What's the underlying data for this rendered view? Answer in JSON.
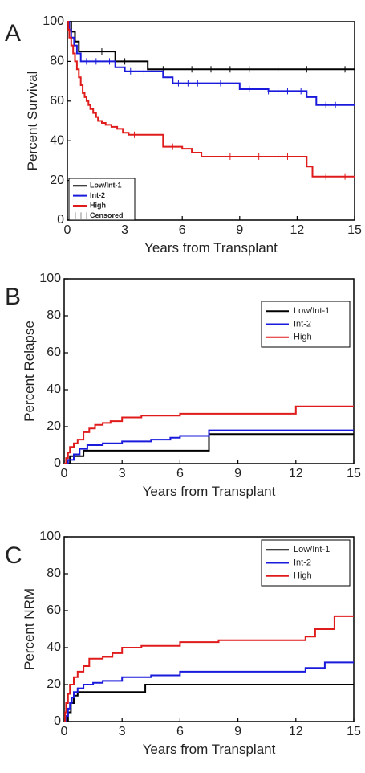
{
  "figure": {
    "colors": {
      "low_int1": "#000000",
      "int2": "#1a1adc",
      "high": "#e01b1b"
    }
  },
  "chart_data": [
    {
      "panel": "A",
      "type": "line",
      "step": true,
      "xlabel": "Years from Transplant",
      "ylabel": "Percent Survival",
      "xlim": [
        0,
        15
      ],
      "ylim": [
        0,
        100
      ],
      "xticks": [
        "0",
        "3",
        "6",
        "9",
        "12",
        "15"
      ],
      "yticks": [
        "0",
        "20",
        "40",
        "60",
        "80",
        "100"
      ],
      "legend": {
        "position": "bottom-left",
        "entries": [
          "Low/Int-1",
          "Int-2",
          "High",
          "Censored"
        ]
      },
      "series": [
        {
          "name": "Low/Int-1",
          "color": "#000000",
          "x": [
            0,
            0.2,
            0.4,
            0.6,
            0.8,
            2.5,
            3.0,
            4.2,
            15
          ],
          "y": [
            100,
            95,
            90,
            85,
            85,
            80,
            80,
            76,
            76
          ],
          "censored": [
            1.8,
            3.0,
            5.0,
            6.5,
            7.5,
            8.5,
            9.5,
            11.0,
            12.5,
            14.5
          ]
        },
        {
          "name": "Int-2",
          "color": "#1a1adc",
          "x": [
            0,
            0.1,
            0.2,
            0.35,
            0.5,
            0.7,
            2.0,
            2.5,
            3.0,
            4.5,
            5.0,
            5.5,
            7.5,
            9.0,
            10.5,
            12.0,
            12.5,
            13.0,
            15
          ],
          "y": [
            100,
            96,
            92,
            88,
            84,
            80,
            80,
            77,
            75,
            75,
            72,
            69,
            69,
            66,
            65,
            65,
            62,
            58,
            58
          ],
          "censored": [
            1.0,
            1.5,
            2.2,
            3.3,
            4.0,
            5.8,
            6.3,
            6.8,
            8.0,
            9.5,
            10.5,
            11.0,
            11.5,
            12.2,
            13.5,
            14.0
          ]
        },
        {
          "name": "High",
          "color": "#e01b1b",
          "x": [
            0,
            0.05,
            0.1,
            0.2,
            0.3,
            0.4,
            0.5,
            0.6,
            0.7,
            0.8,
            0.9,
            1.0,
            1.1,
            1.2,
            1.35,
            1.5,
            1.6,
            1.8,
            2.0,
            2.3,
            2.6,
            2.9,
            3.2,
            4.0,
            5.0,
            6.0,
            6.5,
            7.0,
            12.0,
            12.5,
            12.8,
            15
          ],
          "y": [
            100,
            96,
            92,
            88,
            84,
            80,
            76,
            72,
            68,
            64,
            62,
            60,
            58,
            56,
            54,
            52,
            50,
            49,
            48,
            47,
            46,
            44,
            43,
            43,
            37,
            36,
            34,
            32,
            32,
            27,
            22,
            22
          ],
          "censored": [
            3.5,
            5.5,
            8.5,
            10.0,
            11.0,
            11.5,
            13.5,
            14.5
          ]
        }
      ]
    },
    {
      "panel": "B",
      "type": "line",
      "step": true,
      "xlabel": "Years from Transplant",
      "ylabel": "Percent Relapse",
      "xlim": [
        0,
        15
      ],
      "ylim": [
        0,
        100
      ],
      "xticks": [
        "0",
        "3",
        "6",
        "9",
        "12",
        "15"
      ],
      "yticks": [
        "0",
        "20",
        "40",
        "60",
        "80",
        "100"
      ],
      "legend": {
        "position": "top-right",
        "entries": [
          "Low/Int-1",
          "Int-2",
          "High"
        ]
      },
      "series": [
        {
          "name": "Low/Int-1",
          "color": "#000000",
          "x": [
            0,
            0.3,
            1.0,
            7.5,
            15
          ],
          "y": [
            0,
            4,
            7,
            16,
            16
          ]
        },
        {
          "name": "Int-2",
          "color": "#1a1adc",
          "x": [
            0,
            0.2,
            0.5,
            0.8,
            1.2,
            2.0,
            3.0,
            4.5,
            5.5,
            6.0,
            7.5,
            15
          ],
          "y": [
            0,
            2,
            5,
            8,
            10,
            11,
            12,
            13,
            14,
            15,
            18,
            18
          ]
        },
        {
          "name": "High",
          "color": "#e01b1b",
          "x": [
            0,
            0.1,
            0.2,
            0.3,
            0.5,
            0.7,
            1.0,
            1.3,
            1.6,
            2.0,
            2.4,
            3.0,
            4.0,
            6.0,
            12.0,
            15
          ],
          "y": [
            0,
            3,
            6,
            9,
            11,
            13,
            17,
            19,
            21,
            22,
            23,
            25,
            26,
            27,
            31,
            31
          ]
        }
      ]
    },
    {
      "panel": "C",
      "type": "line",
      "step": true,
      "xlabel": "Years from Transplant",
      "ylabel": "Percent NRM",
      "xlim": [
        0,
        15
      ],
      "ylim": [
        0,
        100
      ],
      "xticks": [
        "0",
        "3",
        "6",
        "9",
        "12",
        "15"
      ],
      "yticks": [
        "0",
        "20",
        "40",
        "60",
        "80",
        "100"
      ],
      "legend": {
        "position": "top-right",
        "entries": [
          "Low/Int-1",
          "Int-2",
          "High"
        ]
      },
      "series": [
        {
          "name": "Low/Int-1",
          "color": "#000000",
          "x": [
            0,
            0.2,
            0.35,
            0.5,
            0.7,
            4.2,
            15
          ],
          "y": [
            0,
            5,
            10,
            14,
            16,
            20,
            20
          ]
        },
        {
          "name": "Int-2",
          "color": "#1a1adc",
          "x": [
            0,
            0.1,
            0.2,
            0.3,
            0.4,
            0.5,
            0.7,
            1.0,
            1.5,
            2.0,
            3.0,
            4.5,
            6.0,
            12.5,
            13.5,
            15
          ],
          "y": [
            0,
            3,
            7,
            10,
            13,
            16,
            18,
            20,
            21,
            22,
            24,
            25,
            27,
            29,
            32,
            32
          ]
        },
        {
          "name": "High",
          "color": "#e01b1b",
          "x": [
            0,
            0.05,
            0.1,
            0.2,
            0.3,
            0.5,
            0.7,
            1.0,
            1.3,
            2.0,
            2.5,
            3.0,
            4.0,
            6.0,
            8.0,
            12.5,
            13.0,
            14.0,
            15
          ],
          "y": [
            0,
            5,
            10,
            15,
            20,
            24,
            27,
            30,
            34,
            35,
            37,
            40,
            41,
            43,
            44,
            46,
            50,
            57,
            57
          ]
        }
      ]
    }
  ]
}
